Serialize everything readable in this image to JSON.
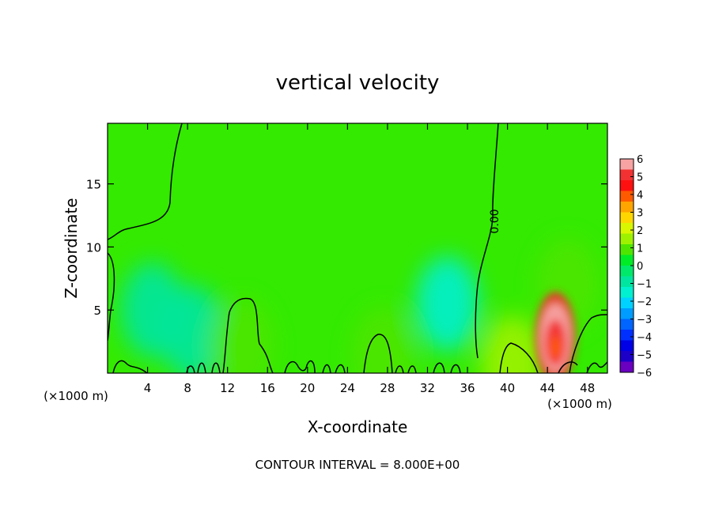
{
  "chart_data": {
    "type": "heatmap",
    "title": "vertical velocity",
    "xlabel": "X-coordinate",
    "ylabel": "Z-coordinate",
    "x_unit_label": "(×1000 m)",
    "x_ticks": [
      4,
      8,
      12,
      16,
      20,
      24,
      28,
      32,
      36,
      40,
      44,
      48
    ],
    "y_ticks": [
      5,
      10,
      15
    ],
    "xlim": [
      0,
      50
    ],
    "ylim": [
      0,
      19.8
    ],
    "contour_label": "0.00",
    "footer": "CONTOUR INTERVAL = 8.000E+00",
    "colorbar": {
      "range": [
        -6,
        6
      ],
      "labels": [
        "6",
        "5",
        "4",
        "3",
        "2",
        "1",
        "0",
        "−1",
        "−2",
        "−3",
        "−4",
        "−5",
        "−6"
      ],
      "colors": [
        "#f7a3a3",
        "#f23232",
        "#ff1010",
        "#ff5a00",
        "#ffa500",
        "#ffd700",
        "#d9f700",
        "#9ef200",
        "#4ee600",
        "#00ec27",
        "#00e96a",
        "#00e6a0",
        "#00f0d0",
        "#00d2ff",
        "#009cff",
        "#0064ff",
        "#0030ff",
        "#0000e6",
        "#1c00c8",
        "#6a00c0"
      ]
    },
    "field_features": [
      {
        "x": 4.5,
        "z": 5.0,
        "w": -1.2
      },
      {
        "x": 8.5,
        "z": 3.2,
        "w": -0.8
      },
      {
        "x": 13.5,
        "z": 2.2,
        "w": 1.0
      },
      {
        "x": 27.5,
        "z": 1.5,
        "w": 1.0
      },
      {
        "x": 34.0,
        "z": 5.5,
        "w": -1.8
      },
      {
        "x": 40.5,
        "z": 0.8,
        "w": 1.5
      },
      {
        "x": 44.8,
        "z": 2.8,
        "w": 5.2
      },
      {
        "x": 46.0,
        "z": 7.0,
        "w": 1.2
      }
    ]
  }
}
